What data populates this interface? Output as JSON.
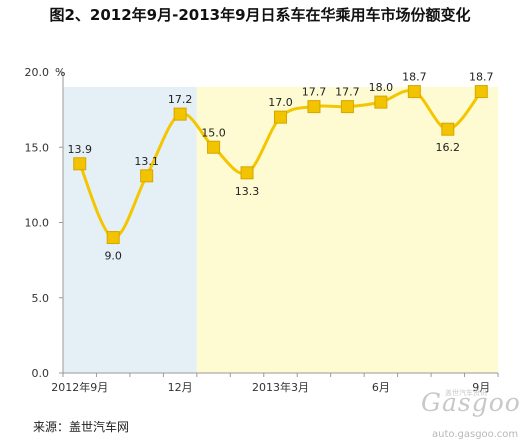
{
  "chart_data": {
    "type": "line",
    "title": "图2、2012年9月-2013年9月日系车在华乘用车市场份额变化",
    "y_unit": "%",
    "ylim": [
      0,
      20
    ],
    "y_ticks": [
      "0.0",
      "5.0",
      "10.0",
      "15.0",
      "20.0"
    ],
    "x_tick_labels": [
      {
        "index": 0,
        "label": "2012年9月"
      },
      {
        "index": 3,
        "label": "12月"
      },
      {
        "index": 6,
        "label": "2013年3月"
      },
      {
        "index": 9,
        "label": "6月"
      },
      {
        "index": 12,
        "label": "9月"
      }
    ],
    "x": [
      "2012-09",
      "2012-10",
      "2012-11",
      "2012-12",
      "2013-01",
      "2013-02",
      "2013-03",
      "2013-04",
      "2013-05",
      "2013-06",
      "2013-07",
      "2013-08",
      "2013-09"
    ],
    "values": [
      13.9,
      9.0,
      13.1,
      17.2,
      15.0,
      13.3,
      17.0,
      17.7,
      17.7,
      18.0,
      18.7,
      16.2,
      18.7
    ],
    "data_labels": [
      "13.9",
      "9.0",
      "13.1",
      "17.2",
      "15.0",
      "13.3",
      "17.0",
      "17.7",
      "17.7",
      "18.0",
      "18.7",
      "16.2",
      "18.7"
    ],
    "shaded_regions": [
      {
        "from": "2012-09",
        "to": "2012-12",
        "color": "#e4f0f6"
      },
      {
        "from": "2013-01",
        "to": "2013-09",
        "color": "#fefbd2"
      }
    ],
    "colors": {
      "line": "#f4c600",
      "marker": "#f2c400",
      "marker_edge": "#d8a400",
      "axis": "#9a9a9a"
    },
    "grid": false,
    "legend": "none"
  },
  "source": "来源：盖世汽车网",
  "watermark": {
    "brand": "Gasgoo",
    "tagline": "盖世汽车资讯",
    "url": "auto.gasgoo.com"
  }
}
